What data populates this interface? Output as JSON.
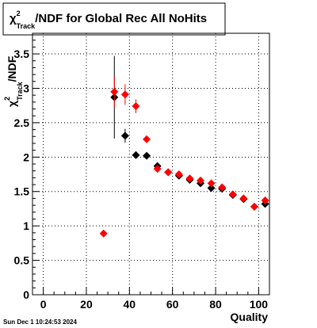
{
  "chart_data": {
    "type": "scatter",
    "title": {
      "symbol": "χ",
      "superscript": "2",
      "subscript": "Track",
      "rest": "/NDF for Global Rec All NoHits"
    },
    "ylabel": {
      "symbol": "χ",
      "superscript": "2",
      "subscript": "Track",
      "rest": "/NDF"
    },
    "xlabel": "Quality",
    "xlim": [
      -5,
      105
    ],
    "ylim": [
      0,
      3.8
    ],
    "xticks": [
      "0",
      "20",
      "40",
      "60",
      "80",
      "100"
    ],
    "yticks": [
      "0",
      "0.5",
      "1",
      "1.5",
      "2",
      "2.5",
      "3",
      "3.5"
    ],
    "grid": true,
    "series": [
      {
        "color": "#000000",
        "points": [
          {
            "x": 33,
            "y": 2.87,
            "err": 0.6
          },
          {
            "x": 38,
            "y": 2.31,
            "err": 0.1
          },
          {
            "x": 43,
            "y": 2.03,
            "err": 0.04
          },
          {
            "x": 48,
            "y": 2.02,
            "err": 0.03
          },
          {
            "x": 53,
            "y": 1.87,
            "err": 0.03
          },
          {
            "x": 58,
            "y": 1.78,
            "err": 0.02
          },
          {
            "x": 63,
            "y": 1.73,
            "err": 0.02
          },
          {
            "x": 68,
            "y": 1.67,
            "err": 0.02
          },
          {
            "x": 73,
            "y": 1.62,
            "err": 0.02
          },
          {
            "x": 78,
            "y": 1.55,
            "err": 0.02
          },
          {
            "x": 83,
            "y": 1.54,
            "err": 0.02
          },
          {
            "x": 88,
            "y": 1.45,
            "err": 0.02
          },
          {
            "x": 93,
            "y": 1.39,
            "err": 0.02
          },
          {
            "x": 98,
            "y": 1.28,
            "err": 0.02
          },
          {
            "x": 103,
            "y": 1.32,
            "err": 0.03
          }
        ]
      },
      {
        "color": "#ff0000",
        "points": [
          {
            "x": 28,
            "y": 0.89,
            "err": 0.01
          },
          {
            "x": 33,
            "y": 2.95,
            "err": 0.22
          },
          {
            "x": 38,
            "y": 2.91,
            "err": 0.15
          },
          {
            "x": 43,
            "y": 2.74,
            "err": 0.1
          },
          {
            "x": 48,
            "y": 2.26,
            "err": 0.04
          },
          {
            "x": 53,
            "y": 1.83,
            "err": 0.03
          },
          {
            "x": 58,
            "y": 1.78,
            "err": 0.02
          },
          {
            "x": 63,
            "y": 1.75,
            "err": 0.02
          },
          {
            "x": 68,
            "y": 1.69,
            "err": 0.02
          },
          {
            "x": 73,
            "y": 1.66,
            "err": 0.02
          },
          {
            "x": 78,
            "y": 1.62,
            "err": 0.02
          },
          {
            "x": 83,
            "y": 1.56,
            "err": 0.02
          },
          {
            "x": 88,
            "y": 1.46,
            "err": 0.02
          },
          {
            "x": 93,
            "y": 1.4,
            "err": 0.02
          },
          {
            "x": 98,
            "y": 1.28,
            "err": 0.02
          },
          {
            "x": 103,
            "y": 1.37,
            "err": 0.03
          }
        ]
      }
    ]
  },
  "footer": {
    "timestamp": "Sun Dec  1 10:24:53 2024"
  }
}
